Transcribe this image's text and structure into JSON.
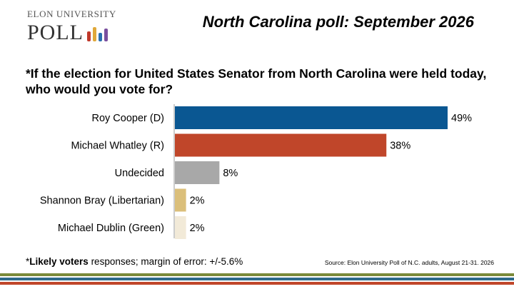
{
  "header": {
    "logo_top": "ELON UNIVERSITY",
    "logo_bottom": "POLL",
    "title": "North Carolina poll: September 2026"
  },
  "logo_bar_colors": [
    "#c0392b",
    "#e0a83a",
    "#2a6fb0",
    "#7a4f9e"
  ],
  "chart_data": {
    "type": "bar",
    "orientation": "horizontal",
    "title": "*If the election for United States Senator from North Carolina were held today, who would you vote for?",
    "categories": [
      "Roy Cooper (D)",
      "Michael Whatley (R)",
      "Undecided",
      "Shannon Bray (Libertarian)",
      "Michael Dublin (Green)"
    ],
    "values": [
      49,
      38,
      8,
      2,
      2
    ],
    "value_labels": [
      "49%",
      "38%",
      "8%",
      "2%",
      "2%"
    ],
    "colors": [
      "#0a5792",
      "#c0462a",
      "#a8a8a8",
      "#dbbf7a",
      "#f2ead8"
    ],
    "unit": "%",
    "grid": false,
    "legend": "none"
  },
  "footnote": {
    "prefix": "*",
    "bold": "Likely voters",
    "rest": " responses; margin of error: +/-5.6%"
  },
  "source": "Source: Elon University Poll of N.C. adults, August 21-31. 2026",
  "stripe_colors": [
    "#7a8a3a",
    "#2d6a8a",
    "#c0462a"
  ]
}
